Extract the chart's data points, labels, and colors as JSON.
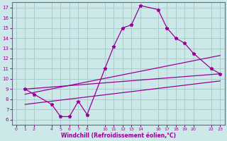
{
  "xlabel": "Windchill (Refroidissement éolien,°C)",
  "bg_color": "#cce8e8",
  "grid_color": "#aacccc",
  "line_color": "#990099",
  "spine_color": "#666699",
  "xlim": [
    -0.5,
    23.5
  ],
  "ylim": [
    5.5,
    17.5
  ],
  "xticks": [
    0,
    1,
    2,
    4,
    5,
    6,
    7,
    8,
    10,
    11,
    12,
    13,
    14,
    16,
    17,
    18,
    19,
    20,
    22,
    23
  ],
  "yticks": [
    6,
    7,
    8,
    9,
    10,
    11,
    12,
    13,
    14,
    15,
    16,
    17
  ],
  "curve_x": [
    1,
    2,
    4,
    5,
    6,
    7,
    8,
    10,
    11,
    12,
    13,
    14,
    16,
    17,
    18,
    19,
    20,
    22,
    23
  ],
  "curve_y": [
    9.0,
    8.5,
    7.5,
    6.3,
    6.3,
    7.8,
    6.5,
    11.0,
    13.2,
    15.0,
    15.3,
    17.2,
    16.8,
    15.0,
    14.0,
    13.5,
    12.5,
    11.0,
    10.5
  ],
  "line1_x": [
    1,
    23
  ],
  "line1_y": [
    9.0,
    10.5
  ],
  "line2_x": [
    1,
    23
  ],
  "line2_y": [
    8.5,
    12.3
  ],
  "line3_x": [
    1,
    23
  ],
  "line3_y": [
    7.5,
    9.8
  ]
}
